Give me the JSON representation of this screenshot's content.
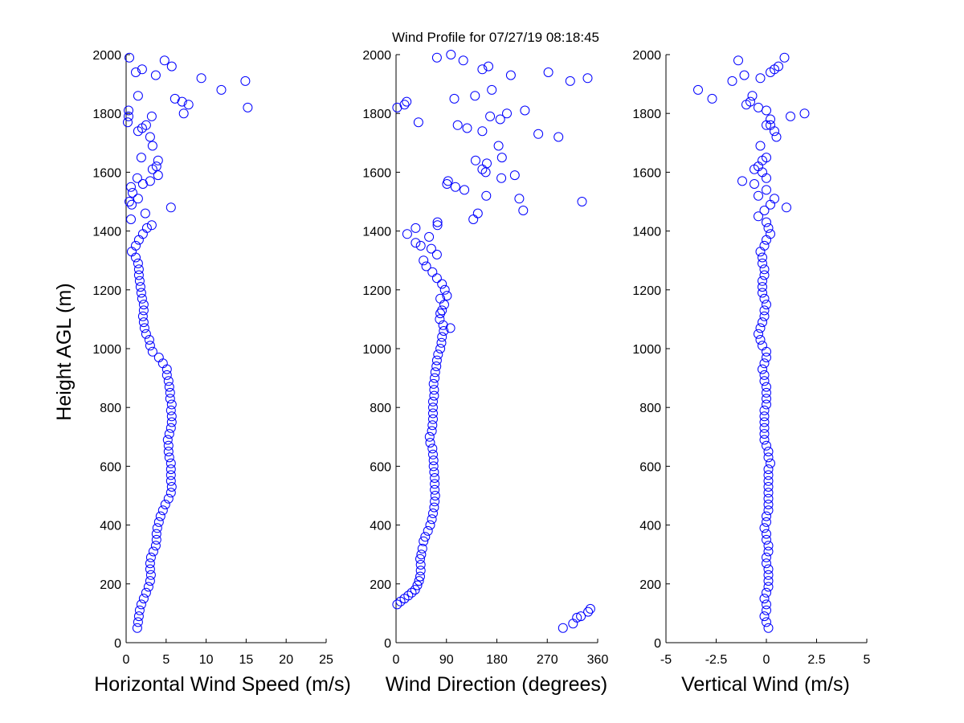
{
  "title": "Wind Profile for  07/27/19 08:18:45",
  "colors": {
    "marker": "#0000ff",
    "axis": "#000000",
    "background": "#ffffff"
  },
  "chart_data": [
    {
      "type": "scatter",
      "xlabel": "Horizontal Wind Speed (m/s)",
      "ylabel": "Height AGL (m)",
      "xlim": [
        0,
        25
      ],
      "ylim": [
        0,
        2000
      ],
      "xticks": [
        0,
        5,
        10,
        15,
        20,
        25
      ],
      "xtick_labels": [
        "0",
        "5",
        "10",
        "15",
        "20",
        "25"
      ],
      "yticks": [
        0,
        200,
        400,
        600,
        800,
        1000,
        1200,
        1400,
        1600,
        1800,
        2000
      ],
      "ytick_labels": [
        "0",
        "200",
        "400",
        "600",
        "800",
        "1000",
        "1200",
        "1400",
        "1600",
        "1800",
        "2000"
      ],
      "grid": false,
      "marker": "open-circle",
      "points": [
        [
          1.4,
          50
        ],
        [
          1.5,
          70
        ],
        [
          1.6,
          90
        ],
        [
          1.7,
          110
        ],
        [
          1.9,
          130
        ],
        [
          2.2,
          150
        ],
        [
          2.5,
          170
        ],
        [
          2.8,
          190
        ],
        [
          3,
          210
        ],
        [
          3.1,
          230
        ],
        [
          3,
          250
        ],
        [
          3,
          270
        ],
        [
          3.1,
          290
        ],
        [
          3.4,
          310
        ],
        [
          3.7,
          330
        ],
        [
          3.8,
          350
        ],
        [
          3.8,
          370
        ],
        [
          3.9,
          390
        ],
        [
          4.1,
          410
        ],
        [
          4.3,
          430
        ],
        [
          4.6,
          450
        ],
        [
          4.9,
          470
        ],
        [
          5.3,
          490
        ],
        [
          5.6,
          510
        ],
        [
          5.7,
          530
        ],
        [
          5.6,
          550
        ],
        [
          5.6,
          570
        ],
        [
          5.6,
          590
        ],
        [
          5.6,
          610
        ],
        [
          5.4,
          630
        ],
        [
          5.3,
          650
        ],
        [
          5.3,
          670
        ],
        [
          5.2,
          690
        ],
        [
          5.4,
          710
        ],
        [
          5.6,
          730
        ],
        [
          5.7,
          750
        ],
        [
          5.7,
          770
        ],
        [
          5.6,
          790
        ],
        [
          5.7,
          810
        ],
        [
          5.5,
          830
        ],
        [
          5.5,
          850
        ],
        [
          5.4,
          870
        ],
        [
          5.3,
          890
        ],
        [
          5.1,
          910
        ],
        [
          5.1,
          930
        ],
        [
          4.6,
          950
        ],
        [
          4.1,
          970
        ],
        [
          3.3,
          990
        ],
        [
          3,
          1010
        ],
        [
          2.9,
          1030
        ],
        [
          2.5,
          1050
        ],
        [
          2.3,
          1070
        ],
        [
          2.2,
          1090
        ],
        [
          2.1,
          1110
        ],
        [
          2.2,
          1130
        ],
        [
          2.2,
          1150
        ],
        [
          2,
          1170
        ],
        [
          1.9,
          1190
        ],
        [
          1.8,
          1210
        ],
        [
          1.7,
          1230
        ],
        [
          1.6,
          1250
        ],
        [
          1.6,
          1270
        ],
        [
          1.5,
          1290
        ],
        [
          1.2,
          1310
        ],
        [
          0.7,
          1330
        ],
        [
          1.2,
          1350
        ],
        [
          1.6,
          1370
        ],
        [
          2.1,
          1390
        ],
        [
          2.6,
          1410
        ],
        [
          3.2,
          1420
        ],
        [
          0.6,
          1440
        ],
        [
          2.4,
          1460
        ],
        [
          5.6,
          1480
        ],
        [
          0.7,
          1490
        ],
        [
          0.4,
          1500
        ],
        [
          1.5,
          1510
        ],
        [
          0.8,
          1530
        ],
        [
          0.6,
          1550
        ],
        [
          2.1,
          1560
        ],
        [
          3,
          1570
        ],
        [
          1.4,
          1580
        ],
        [
          4,
          1590
        ],
        [
          3.3,
          1610
        ],
        [
          3.8,
          1620
        ],
        [
          4,
          1640
        ],
        [
          1.9,
          1650
        ],
        [
          3.3,
          1690
        ],
        [
          3,
          1720
        ],
        [
          1.5,
          1740
        ],
        [
          2,
          1750
        ],
        [
          2.5,
          1760
        ],
        [
          0.2,
          1770
        ],
        [
          0.3,
          1790
        ],
        [
          3.2,
          1790
        ],
        [
          0.3,
          1810
        ],
        [
          7.2,
          1800
        ],
        [
          7.8,
          1830
        ],
        [
          15.2,
          1820
        ],
        [
          7,
          1840
        ],
        [
          6.1,
          1850
        ],
        [
          1.5,
          1860
        ],
        [
          11.9,
          1880
        ],
        [
          9.4,
          1920
        ],
        [
          14.9,
          1910
        ],
        [
          3.7,
          1930
        ],
        [
          1.2,
          1940
        ],
        [
          2,
          1950
        ],
        [
          5.7,
          1960
        ],
        [
          4.8,
          1980
        ],
        [
          0.4,
          1990
        ]
      ]
    },
    {
      "type": "scatter",
      "xlabel": "Wind Direction (degrees)",
      "ylabel": "",
      "xlim": [
        0,
        360
      ],
      "ylim": [
        0,
        2000
      ],
      "xticks": [
        0,
        90,
        180,
        270,
        360
      ],
      "xtick_labels": [
        "0",
        "90",
        "180",
        "270",
        "360"
      ],
      "yticks": [
        0,
        200,
        400,
        600,
        800,
        1000,
        1200,
        1400,
        1600,
        1800,
        2000
      ],
      "ytick_labels": [
        "0",
        "200",
        "400",
        "600",
        "800",
        "1000",
        "1200",
        "1400",
        "1600",
        "1800",
        "2000"
      ],
      "grid": false,
      "marker": "open-circle",
      "points": [
        [
          298,
          50
        ],
        [
          316,
          65
        ],
        [
          323,
          85
        ],
        [
          330,
          90
        ],
        [
          343,
          105
        ],
        [
          347,
          115
        ],
        [
          2,
          130
        ],
        [
          8,
          140
        ],
        [
          15,
          150
        ],
        [
          22,
          160
        ],
        [
          28,
          170
        ],
        [
          34,
          180
        ],
        [
          38,
          195
        ],
        [
          41,
          210
        ],
        [
          43,
          225
        ],
        [
          44,
          245
        ],
        [
          44,
          265
        ],
        [
          43,
          285
        ],
        [
          45,
          300
        ],
        [
          47,
          320
        ],
        [
          49,
          345
        ],
        [
          52,
          360
        ],
        [
          57,
          380
        ],
        [
          61,
          400
        ],
        [
          64,
          420
        ],
        [
          66,
          440
        ],
        [
          68,
          460
        ],
        [
          69,
          480
        ],
        [
          70,
          500
        ],
        [
          69,
          520
        ],
        [
          69,
          540
        ],
        [
          69,
          560
        ],
        [
          68,
          580
        ],
        [
          67,
          600
        ],
        [
          67,
          620
        ],
        [
          66,
          640
        ],
        [
          65,
          660
        ],
        [
          61,
          680
        ],
        [
          60,
          700
        ],
        [
          64,
          720
        ],
        [
          65,
          740
        ],
        [
          66,
          760
        ],
        [
          66,
          780
        ],
        [
          66,
          800
        ],
        [
          66,
          820
        ],
        [
          68,
          840
        ],
        [
          68,
          860
        ],
        [
          67,
          880
        ],
        [
          69,
          900
        ],
        [
          70,
          920
        ],
        [
          72,
          940
        ],
        [
          73,
          960
        ],
        [
          75,
          980
        ],
        [
          79,
          1000
        ],
        [
          81,
          1020
        ],
        [
          82,
          1040
        ],
        [
          85,
          1060
        ],
        [
          97,
          1070
        ],
        [
          84,
          1080
        ],
        [
          78,
          1100
        ],
        [
          79,
          1120
        ],
        [
          82,
          1130
        ],
        [
          86,
          1150
        ],
        [
          79,
          1170
        ],
        [
          91,
          1180
        ],
        [
          87,
          1200
        ],
        [
          82,
          1220
        ],
        [
          73,
          1240
        ],
        [
          65,
          1260
        ],
        [
          54,
          1280
        ],
        [
          49,
          1300
        ],
        [
          73,
          1320
        ],
        [
          63,
          1340
        ],
        [
          35,
          1360
        ],
        [
          44,
          1350
        ],
        [
          59,
          1380
        ],
        [
          35,
          1410
        ],
        [
          20,
          1390
        ],
        [
          74,
          1420
        ],
        [
          74,
          1430
        ],
        [
          138,
          1440
        ],
        [
          146,
          1460
        ],
        [
          227,
          1470
        ],
        [
          332,
          1500
        ],
        [
          220,
          1510
        ],
        [
          161,
          1520
        ],
        [
          106,
          1550
        ],
        [
          122,
          1540
        ],
        [
          91,
          1560
        ],
        [
          93,
          1570
        ],
        [
          212,
          1590
        ],
        [
          188,
          1580
        ],
        [
          160,
          1600
        ],
        [
          154,
          1610
        ],
        [
          162,
          1630
        ],
        [
          142,
          1640
        ],
        [
          189,
          1650
        ],
        [
          183,
          1690
        ],
        [
          254,
          1730
        ],
        [
          290,
          1720
        ],
        [
          127,
          1750
        ],
        [
          154,
          1740
        ],
        [
          110,
          1760
        ],
        [
          40,
          1770
        ],
        [
          186,
          1780
        ],
        [
          168,
          1790
        ],
        [
          198,
          1800
        ],
        [
          2,
          1820
        ],
        [
          15,
          1830
        ],
        [
          19,
          1840
        ],
        [
          230,
          1810
        ],
        [
          104,
          1850
        ],
        [
          141,
          1860
        ],
        [
          171,
          1880
        ],
        [
          272,
          1940
        ],
        [
          311,
          1910
        ],
        [
          342,
          1920
        ],
        [
          205,
          1930
        ],
        [
          154,
          1950
        ],
        [
          165,
          1960
        ],
        [
          120,
          1980
        ],
        [
          73,
          1990
        ],
        [
          98,
          2000
        ]
      ]
    },
    {
      "type": "scatter",
      "xlabel": "Vertical Wind (m/s)",
      "ylabel": "",
      "xlim": [
        -5,
        5
      ],
      "ylim": [
        0,
        2000
      ],
      "xticks": [
        -5,
        -2.5,
        0,
        2.5,
        5
      ],
      "xtick_labels": [
        "-5",
        "-2.5",
        "0",
        "2.5",
        "5"
      ],
      "yticks": [
        0,
        200,
        400,
        600,
        800,
        1000,
        1200,
        1400,
        1600,
        1800,
        2000
      ],
      "ytick_labels": [
        "0",
        "200",
        "400",
        "600",
        "800",
        "1000",
        "1200",
        "1400",
        "1600",
        "1800",
        "2000"
      ],
      "grid": false,
      "marker": "open-circle",
      "points": [
        [
          0.1,
          50
        ],
        [
          0,
          70
        ],
        [
          -0.1,
          90
        ],
        [
          0,
          110
        ],
        [
          0,
          130
        ],
        [
          -0.1,
          150
        ],
        [
          0,
          170
        ],
        [
          0.1,
          190
        ],
        [
          0.1,
          210
        ],
        [
          0.1,
          230
        ],
        [
          0.1,
          250
        ],
        [
          0,
          270
        ],
        [
          0,
          290
        ],
        [
          0.1,
          310
        ],
        [
          0.1,
          330
        ],
        [
          0,
          350
        ],
        [
          0,
          370
        ],
        [
          -0.1,
          390
        ],
        [
          0,
          410
        ],
        [
          0,
          430
        ],
        [
          0.1,
          450
        ],
        [
          0.1,
          470
        ],
        [
          0.1,
          490
        ],
        [
          0.1,
          510
        ],
        [
          0.1,
          530
        ],
        [
          0.1,
          550
        ],
        [
          0.1,
          570
        ],
        [
          0.1,
          590
        ],
        [
          0.2,
          610
        ],
        [
          0.1,
          630
        ],
        [
          0.1,
          650
        ],
        [
          0,
          670
        ],
        [
          -0.1,
          690
        ],
        [
          -0.1,
          710
        ],
        [
          -0.1,
          730
        ],
        [
          -0.1,
          750
        ],
        [
          -0.1,
          770
        ],
        [
          -0.1,
          790
        ],
        [
          0,
          810
        ],
        [
          0,
          830
        ],
        [
          0,
          850
        ],
        [
          0,
          870
        ],
        [
          -0.1,
          890
        ],
        [
          -0.1,
          910
        ],
        [
          -0.2,
          930
        ],
        [
          -0.1,
          950
        ],
        [
          0,
          970
        ],
        [
          0,
          990
        ],
        [
          -0.2,
          1010
        ],
        [
          -0.3,
          1030
        ],
        [
          -0.4,
          1050
        ],
        [
          -0.3,
          1070
        ],
        [
          -0.2,
          1090
        ],
        [
          -0.1,
          1110
        ],
        [
          -0.1,
          1130
        ],
        [
          0,
          1150
        ],
        [
          -0.1,
          1170
        ],
        [
          -0.2,
          1190
        ],
        [
          -0.2,
          1210
        ],
        [
          -0.2,
          1230
        ],
        [
          -0.1,
          1250
        ],
        [
          -0.1,
          1270
        ],
        [
          -0.2,
          1290
        ],
        [
          -0.2,
          1310
        ],
        [
          -0.3,
          1330
        ],
        [
          -0.1,
          1350
        ],
        [
          0,
          1370
        ],
        [
          0.2,
          1390
        ],
        [
          0.1,
          1410
        ],
        [
          0,
          1430
        ],
        [
          -0.4,
          1450
        ],
        [
          -0.1,
          1470
        ],
        [
          1,
          1480
        ],
        [
          0.2,
          1490
        ],
        [
          0.4,
          1510
        ],
        [
          -0.4,
          1520
        ],
        [
          0,
          1540
        ],
        [
          -0.6,
          1560
        ],
        [
          -1.2,
          1570
        ],
        [
          0,
          1580
        ],
        [
          -0.2,
          1600
        ],
        [
          -0.6,
          1610
        ],
        [
          -0.4,
          1620
        ],
        [
          -0.2,
          1640
        ],
        [
          0,
          1650
        ],
        [
          -0.3,
          1690
        ],
        [
          0.5,
          1720
        ],
        [
          0.4,
          1740
        ],
        [
          0.2,
          1760
        ],
        [
          0,
          1760
        ],
        [
          0.2,
          1780
        ],
        [
          1.2,
          1790
        ],
        [
          1.9,
          1800
        ],
        [
          0,
          1810
        ],
        [
          -0.4,
          1820
        ],
        [
          -1,
          1830
        ],
        [
          -0.8,
          1840
        ],
        [
          -0.7,
          1860
        ],
        [
          -2.7,
          1850
        ],
        [
          -3.4,
          1880
        ],
        [
          -1.7,
          1910
        ],
        [
          -0.3,
          1920
        ],
        [
          -1.1,
          1930
        ],
        [
          0.2,
          1940
        ],
        [
          0.4,
          1950
        ],
        [
          0.6,
          1960
        ],
        [
          0.9,
          1990
        ],
        [
          -1.4,
          1980
        ]
      ]
    }
  ]
}
